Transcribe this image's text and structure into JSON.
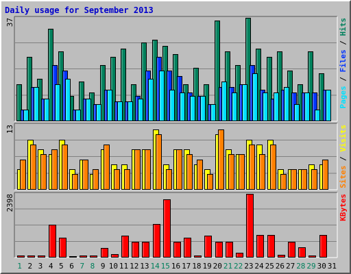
{
  "title": "Daily usage for September 2013",
  "colors": {
    "background": "#C0C0C0",
    "plot": "#BDBDBD",
    "hits": "#00805C",
    "files": "#0033FF",
    "pages": "#00E0FF",
    "visits": "#FFFF00",
    "sites": "#FF8000",
    "kbytes": "#FF0000",
    "weekend": "#00805C",
    "weekday": "#000000"
  },
  "chart_data": [
    {
      "type": "bar",
      "name": "top-panel",
      "ymax_label": "37",
      "legend": [
        "Pages",
        "Files",
        "Hits"
      ],
      "legend_colors": [
        "#00E0FF",
        "#0033FF",
        "#00805C"
      ],
      "categories": [
        "1",
        "2",
        "3",
        "4",
        "5",
        "6",
        "7",
        "8",
        "9",
        "10",
        "11",
        "12",
        "13",
        "14",
        "15",
        "16",
        "17",
        "18",
        "19",
        "20",
        "21",
        "22",
        "23",
        "24",
        "25",
        "26",
        "27",
        "28",
        "29",
        "30",
        "31"
      ],
      "weekend": [
        true,
        false,
        false,
        false,
        false,
        false,
        true,
        true,
        false,
        false,
        false,
        false,
        false,
        true,
        true,
        false,
        false,
        false,
        false,
        false,
        true,
        true,
        false,
        false,
        false,
        false,
        false,
        true,
        true,
        false,
        false
      ],
      "ylim": [
        0,
        37
      ],
      "series": [
        {
          "name": "Hits",
          "values": [
            13,
            23,
            15,
            33,
            25,
            9,
            14,
            10,
            20,
            23,
            26,
            13,
            28,
            29,
            27,
            24,
            13,
            19,
            13,
            36,
            25,
            20,
            37,
            26,
            23,
            25,
            18,
            13,
            25,
            17,
            0
          ]
        },
        {
          "name": "Files",
          "values": [
            4,
            12,
            8,
            20,
            18,
            4,
            8,
            6,
            11,
            7,
            7,
            9,
            18,
            23,
            18,
            16,
            10,
            9,
            6,
            12,
            12,
            13,
            20,
            11,
            8,
            11,
            10,
            10,
            10,
            11,
            0
          ]
        },
        {
          "name": "Pages",
          "values": [
            4,
            12,
            8,
            13,
            15,
            4,
            8,
            6,
            11,
            7,
            7,
            8,
            15,
            18,
            11,
            10,
            9,
            9,
            6,
            14,
            10,
            13,
            17,
            10,
            10,
            12,
            6,
            10,
            4,
            11,
            0
          ]
        }
      ]
    },
    {
      "type": "bar",
      "name": "middle-panel",
      "ymax_label": "13",
      "legend": [
        "Sites",
        "Visits"
      ],
      "legend_colors": [
        "#FF8000",
        "#FFFF00"
      ],
      "categories": [
        "1",
        "2",
        "3",
        "4",
        "5",
        "6",
        "7",
        "8",
        "9",
        "10",
        "11",
        "12",
        "13",
        "14",
        "15",
        "16",
        "17",
        "18",
        "19",
        "20",
        "21",
        "22",
        "23",
        "24",
        "25",
        "26",
        "27",
        "28",
        "29",
        "30",
        "31"
      ],
      "ylim": [
        0,
        13
      ],
      "series": [
        {
          "name": "Visits",
          "values": [
            4,
            10,
            8,
            7,
            10,
            4,
            6,
            3,
            8,
            5,
            5,
            8,
            8,
            12,
            5,
            8,
            8,
            5,
            4,
            11,
            8,
            7,
            10,
            9,
            10,
            4,
            4,
            4,
            5,
            5,
            0
          ]
        },
        {
          "name": "Sites",
          "values": [
            6,
            9,
            7,
            8,
            9,
            3,
            6,
            4,
            9,
            4,
            4,
            8,
            8,
            11,
            4,
            8,
            7,
            6,
            3,
            12,
            7,
            7,
            9,
            7,
            9,
            3,
            4,
            4,
            4,
            6,
            0
          ]
        }
      ]
    },
    {
      "type": "bar",
      "name": "bottom-panel",
      "ymax_label": "2398",
      "legend": [
        "KBytes"
      ],
      "legend_colors": [
        "#FF0000"
      ],
      "categories": [
        "1",
        "2",
        "3",
        "4",
        "5",
        "6",
        "7",
        "8",
        "9",
        "10",
        "11",
        "12",
        "13",
        "14",
        "15",
        "16",
        "17",
        "18",
        "19",
        "20",
        "21",
        "22",
        "23",
        "24",
        "25",
        "26",
        "27",
        "28",
        "29",
        "30",
        "31"
      ],
      "ylim": [
        0,
        2398
      ],
      "series": [
        {
          "name": "KBytes",
          "values": [
            40,
            60,
            50,
            1220,
            740,
            30,
            60,
            40,
            330,
            110,
            820,
            580,
            580,
            1240,
            2180,
            580,
            740,
            40,
            810,
            580,
            580,
            150,
            2398,
            830,
            830,
            80,
            580,
            370,
            40,
            830,
            0
          ]
        }
      ]
    }
  ]
}
